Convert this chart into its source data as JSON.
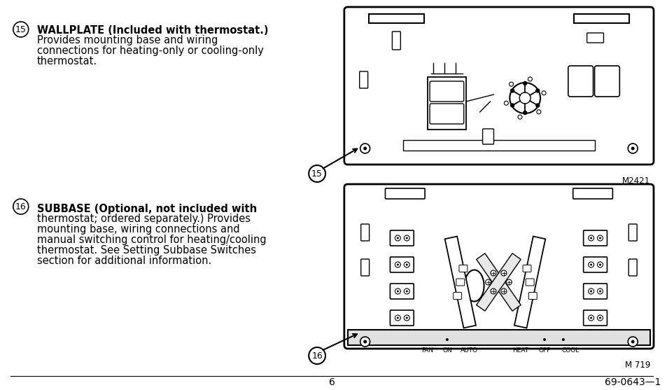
{
  "bg_color": "#ffffff",
  "text_color": "#000000",
  "page_number": "6",
  "page_code": "69-0643—1",
  "item15_circle": "15",
  "item16_circle": "16",
  "item15_title": "WALLPLATE (Included with thermostat.)",
  "item15_lines": [
    "Provides mounting base and wiring",
    "connections for heating-only or cooling-only",
    "thermostat."
  ],
  "item16_title": "SUBBASE (Optional, not included with",
  "item16_lines": [
    "thermostat; ordered separately.) Provides",
    "mounting base, wiring connections and",
    "manual switching control for heating/cooling",
    "thermostat. See Setting Subbase Switches",
    "section for additional information."
  ],
  "fig1_label": "M2421",
  "fig2_label": "M 719",
  "font_size_body": 10.5,
  "font_size_footer": 10.0
}
